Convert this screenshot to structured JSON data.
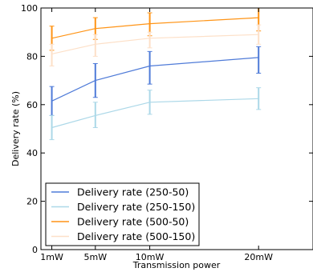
{
  "chart_data": {
    "type": "line",
    "title": "",
    "xlabel": "Transmission power",
    "ylabel": "Delivery rate (%)",
    "x": [
      1,
      5,
      10,
      20
    ],
    "x_tick_labels": [
      "1mW",
      "5mW",
      "10mW",
      "20mW"
    ],
    "xlim": [
      0,
      25
    ],
    "ylim": [
      0,
      100
    ],
    "y_ticks": [
      0,
      20,
      40,
      60,
      80,
      100
    ],
    "grid": false,
    "legend_position": "lower-left",
    "series": [
      {
        "name": "Delivery rate (250-50)",
        "color": "#4f7bd8",
        "values": [
          61.5,
          70.0,
          76.0,
          79.5
        ],
        "err_low": [
          55.5,
          63.0,
          68.5,
          73.0
        ],
        "err_high": [
          67.5,
          77.0,
          82.0,
          84.0
        ]
      },
      {
        "name": "Delivery rate (250-150)",
        "color": "#acd8e8",
        "values": [
          50.5,
          55.5,
          61.0,
          62.5
        ],
        "err_low": [
          45.5,
          50.5,
          56.0,
          58.0
        ],
        "err_high": [
          55.5,
          61.0,
          66.0,
          67.0
        ]
      },
      {
        "name": "Delivery rate (500-50)",
        "color": "#ff9416",
        "values": [
          87.5,
          91.5,
          93.5,
          96.0
        ],
        "err_low": [
          82.5,
          87.0,
          88.5,
          90.5
        ],
        "err_high": [
          92.5,
          96.0,
          98.0,
          101.0
        ]
      },
      {
        "name": "Delivery rate (500-150)",
        "color": "#fde0c8",
        "values": [
          81.0,
          85.0,
          87.5,
          89.0
        ],
        "err_low": [
          76.0,
          80.0,
          83.5,
          85.0
        ],
        "err_high": [
          85.0,
          89.0,
          90.0,
          93.0
        ]
      }
    ]
  }
}
